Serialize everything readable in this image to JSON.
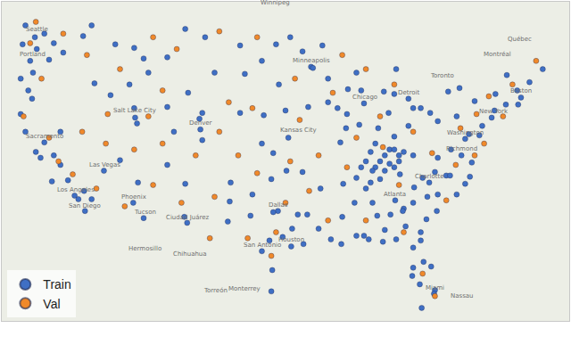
{
  "chart_data": {
    "type": "scatter",
    "xlim": [
      -126,
      -66
    ],
    "ylim": [
      23.5,
      50.5
    ],
    "tick_labels": false,
    "grid": false,
    "legend": "bottom left",
    "marker": "circle",
    "series": [
      {
        "name": "Train",
        "color": "#3f6fc4",
        "x": [
          -123.5,
          -122.5,
          -122.3,
          -123,
          -122.7,
          -121.5,
          -120.5,
          -119.5,
          -117.4,
          -116.5,
          -123.8,
          -124,
          -123.2,
          -122.8,
          -121,
          -124,
          -123.5,
          -122.4,
          -121.9,
          -121.5,
          -120.5,
          -119.8,
          -119,
          -120.7,
          -118.3,
          -117.9,
          -117.2,
          -116.5,
          -117.3,
          -119.8,
          -115.2,
          -113.5,
          -111.9,
          -112,
          -111.7,
          -116.2,
          -114.5,
          -112.5,
          -111,
          -114,
          -108.5,
          -112,
          -106.6,
          -104.5,
          -110.5,
          -112.1,
          -111,
          -111.6,
          -106.6,
          -106.7,
          -108.5,
          -105,
          -104.8,
          -105.1,
          -107.8,
          -104.8,
          -106.3,
          -108.5,
          -103.5,
          -100.8,
          -97,
          -98.5,
          -96.7,
          -100.3,
          -96,
          -98.3,
          -100.8,
          -97.3,
          -95.7,
          -98.5,
          -97.5,
          -95.9,
          -101.8,
          -99.5,
          -97.7,
          -98.5,
          -96.8,
          -97.3,
          -95.4,
          -94.1,
          -97.4,
          -97.5,
          -101.9,
          -106.4,
          -102.1,
          -99.7,
          -94.7,
          -95.3,
          -96.3,
          -93.3,
          -93.1,
          -94.2,
          -92.1,
          -95.5,
          -91.5,
          -89.4,
          -88,
          -88.5,
          -90.5,
          -93.6,
          -91.5,
          -87.7,
          -89.6,
          -88.2,
          -89.5,
          -90.2,
          -83,
          -84.5,
          -85.6,
          -84.3,
          -86.2,
          -85.1,
          -86.5,
          -83,
          -81.7,
          -84.5,
          -82.5,
          -80.7,
          -86,
          -85.5,
          -85,
          -84.5,
          -84,
          -86.5,
          -85.5,
          -86.8,
          -87.5,
          -88,
          -85,
          -84.5,
          -83.9,
          -86,
          -87,
          -89.9,
          -88.5,
          -84,
          -83.5,
          -82.5,
          -87,
          -90,
          -91.2,
          -90.1,
          -92.5,
          -93.7,
          -92.3,
          -94.2,
          -88.7,
          -88.5,
          -87.7,
          -86.8,
          -86.3,
          -85.5,
          -87.5,
          -84.4,
          -83.5,
          -82.5,
          -81.1,
          -83.6,
          -84.9,
          -81.7,
          -83.3,
          -81,
          -80,
          -82.4,
          -79.9,
          -80.8,
          -79,
          -78.6,
          -77.9,
          -77,
          -76.5,
          -81.5,
          -80.2,
          -81.7,
          -82.5,
          -81.4,
          -82.5,
          -80.6,
          -82.6,
          -81.8,
          -80.2,
          -80.3,
          -81.6,
          -84.3,
          -85.7,
          -87.2,
          -77.4,
          -76.3,
          -79.9,
          -78.5,
          -77,
          -76.6,
          -75.2,
          -74.2,
          -73.9,
          -75.5,
          -77.9,
          -79.9,
          -76,
          -73.8,
          -72.7,
          -71.4,
          -71.1,
          -71.5,
          -70.2,
          -72.6,
          -68.8,
          -78.8,
          -77.6
        ],
        "y": [
          48.5,
          47.5,
          46.5,
          45.5,
          44.5,
          47.8,
          47,
          46.2,
          47.6,
          48.5,
          46.9,
          44,
          43,
          42.3,
          45.6,
          41,
          39.5,
          37.8,
          37.3,
          38.6,
          37.5,
          36.7,
          35.4,
          35.3,
          34.1,
          33.8,
          32.8,
          33.8,
          34.5,
          39.5,
          36.2,
          37.1,
          40.7,
          41.5,
          40.2,
          43.6,
          42.6,
          43.5,
          45.7,
          46.9,
          45.8,
          46.6,
          48.2,
          47.5,
          44.5,
          33.5,
          32.2,
          35.2,
          35.1,
          32.3,
          36.7,
          39.7,
          38.8,
          40.6,
          39.5,
          41.1,
          42.8,
          41.6,
          44.5,
          46.8,
          46.9,
          45.5,
          43.5,
          44.4,
          41.3,
          40.9,
          41.1,
          37.7,
          39,
          38.5,
          35.5,
          36.2,
          35.2,
          34.2,
          30.3,
          29.4,
          32.8,
          32.7,
          29.8,
          30,
          27.8,
          26,
          33.6,
          31.8,
          31.9,
          32.4,
          32.5,
          31.3,
          30.6,
          45,
          44.9,
          46.3,
          46.8,
          47.5,
          44,
          43.1,
          43,
          44.5,
          41.5,
          41.6,
          42,
          41.9,
          39.8,
          40.1,
          41,
          38.6,
          42.3,
          42.7,
          42.9,
          44.8,
          39.8,
          41.1,
          38.5,
          40,
          41.5,
          39.1,
          41.5,
          41.1,
          37,
          37.5,
          38,
          38,
          37.5,
          36.5,
          36.2,
          36.2,
          37,
          36.5,
          36.8,
          36.5,
          35.9,
          35.5,
          35.2,
          35.1,
          35.6,
          37,
          37.8,
          37.5,
          37.8,
          32.3,
          30.4,
          30,
          31.3,
          32.5,
          34.7,
          36.1,
          33.5,
          30.7,
          30.7,
          33.5,
          32.4,
          31.2,
          34.7,
          33.7,
          33,
          33.5,
          32.1,
          32.8,
          32.5,
          31,
          31.5,
          34,
          32.8,
          34.8,
          34.2,
          35.2,
          35.8,
          35.8,
          34.2,
          35.1,
          35.7,
          35.6,
          36.1,
          30.3,
          29.7,
          28.5,
          28,
          28.1,
          27.3,
          26.6,
          26.1,
          25.8,
          24.6,
          30.4,
          30.2,
          30.4,
          37.5,
          36.9,
          37.3,
          38,
          38.9,
          39.3,
          40,
          40.7,
          41.3,
          39.2,
          40.8,
          40.4,
          42.1,
          42.7,
          41.8,
          41.8,
          42.4,
          43,
          43.7,
          44.3,
          44.8,
          42.9,
          43.2
        ]
      },
      {
        "name": "Val",
        "color": "#f0892a",
        "x": [
          -123,
          -119.5,
          -117,
          -121.8,
          -123.7,
          -121,
          -120,
          -118.5,
          -116,
          -117.5,
          -114.8,
          -115,
          -112,
          -113.5,
          -110,
          -107.5,
          -109,
          -110.5,
          -109,
          -110,
          -113,
          -107,
          -105.5,
          -103,
          -102,
          -103,
          -99,
          -99.5,
          -101,
          -99,
          -103.5,
          -100,
          -104,
          -96,
          -97.5,
          -93.5,
          -92.5,
          -94.5,
          -95,
          -90,
          -91,
          -88.5,
          -86,
          -84.5,
          -82.5,
          -89.5,
          -91.5,
          -87.5,
          -84,
          -83.5,
          -81.5,
          -80.2,
          -79,
          -80.5,
          -77.5,
          -75.8,
          -74.5,
          -72,
          -69.5,
          -78,
          -76,
          -75,
          -73,
          -87.5,
          -85.7,
          -122.4,
          -95.5,
          -97
        ],
        "y": [
          47,
          47.8,
          46,
          44,
          40.8,
          39,
          37,
          35.9,
          34.7,
          39.5,
          41,
          38.5,
          38,
          44.8,
          47.5,
          46.5,
          43,
          40.8,
          38.5,
          35,
          33.2,
          33.5,
          37.5,
          39.5,
          42,
          48,
          47.5,
          41.5,
          37.5,
          36,
          34,
          30.5,
          30.5,
          33.5,
          29,
          34.5,
          37.5,
          40.5,
          44,
          46,
          42.8,
          39,
          40.8,
          43.5,
          39.5,
          36.5,
          32,
          32,
          35,
          31,
          27.5,
          25.6,
          33.7,
          37.7,
          39.8,
          41,
          42.5,
          43.5,
          45.5,
          36.7,
          37.5,
          38.5,
          40.8,
          44.8,
          38.2,
          48.8,
          37,
          31
        ]
      }
    ],
    "places": [
      {
        "name": "Winnipeg",
        "x": -97.1,
        "y": 49.9
      },
      {
        "name": "Seattle",
        "x": -122.3,
        "y": 47.6
      },
      {
        "name": "Portland",
        "x": -122.7,
        "y": 45.5
      },
      {
        "name": "Sacramento",
        "x": -121.5,
        "y": 38.6
      },
      {
        "name": "Salt Lake City",
        "x": -111.9,
        "y": 40.8
      },
      {
        "name": "Denver",
        "x": -104.99,
        "y": 39.74
      },
      {
        "name": "Las Vegas",
        "x": -115.1,
        "y": 36.2
      },
      {
        "name": "Los Angeles",
        "x": -118.2,
        "y": 34.05
      },
      {
        "name": "San Diego",
        "x": -117.2,
        "y": 32.7
      },
      {
        "name": "Phoenix",
        "x": -112.07,
        "y": 33.45
      },
      {
        "name": "Tucson",
        "x": -110.9,
        "y": 32.2
      },
      {
        "name": "Ciudad Juárez",
        "x": -106.4,
        "y": 31.7
      },
      {
        "name": "Chihuahua",
        "x": -106.1,
        "y": 28.6
      },
      {
        "name": "Hermosillo",
        "x": -110.9,
        "y": 29.1
      },
      {
        "name": "Torreón",
        "x": -103.4,
        "y": 25.5
      },
      {
        "name": "Monterrey",
        "x": -100.3,
        "y": 25.7
      },
      {
        "name": "San Antonio",
        "x": -98.5,
        "y": 29.4
      },
      {
        "name": "Houston",
        "x": -95.4,
        "y": 29.8
      },
      {
        "name": "Dallas",
        "x": -96.8,
        "y": 32.8
      },
      {
        "name": "Kansas City",
        "x": -94.6,
        "y": 39.1
      },
      {
        "name": "Minneapolis",
        "x": -93.3,
        "y": 44.98
      },
      {
        "name": "Chicago",
        "x": -87.6,
        "y": 41.9
      },
      {
        "name": "Detroit",
        "x": -83,
        "y": 42.3
      },
      {
        "name": "Toronto",
        "x": -79.4,
        "y": 43.7
      },
      {
        "name": "Montréal",
        "x": -73.6,
        "y": 45.5
      },
      {
        "name": "Québec",
        "x": -71.2,
        "y": 46.8
      },
      {
        "name": "Boston",
        "x": -71.1,
        "y": 42.4
      },
      {
        "name": "New York",
        "x": -74,
        "y": 40.7
      },
      {
        "name": "Washington",
        "x": -77,
        "y": 38.9
      },
      {
        "name": "Richmond",
        "x": -77.4,
        "y": 37.5
      },
      {
        "name": "Charlotte",
        "x": -80.8,
        "y": 35.2
      },
      {
        "name": "Atlanta",
        "x": -84.4,
        "y": 33.7
      },
      {
        "name": "Miami",
        "x": -80.2,
        "y": 25.8
      },
      {
        "name": "Nassau",
        "x": -77.3,
        "y": 25.1
      }
    ]
  }
}
